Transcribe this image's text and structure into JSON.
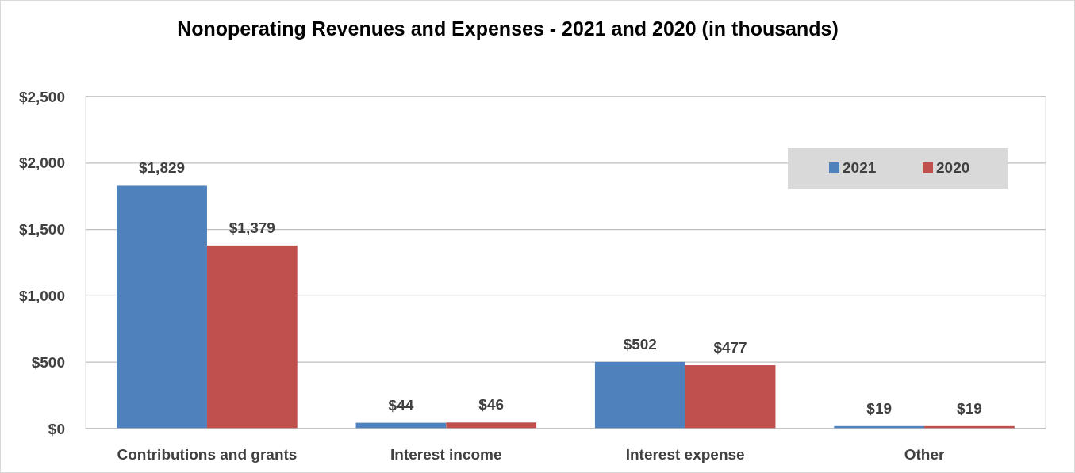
{
  "chart_data": {
    "type": "bar",
    "title": "Nonoperating Revenues and Expenses - 2021 and 2020  (in thousands)",
    "categories": [
      "Contributions and grants",
      "Interest income",
      "Interest expense",
      "Other"
    ],
    "series": [
      {
        "name": "2021",
        "color": "#4f81bd",
        "values": [
          1829,
          44,
          502,
          19
        ],
        "value_labels": [
          "$1,829",
          "$44",
          "$502",
          "$19"
        ]
      },
      {
        "name": "2020",
        "color": "#c0504d",
        "values": [
          1379,
          46,
          477,
          19
        ],
        "value_labels": [
          "$1,379",
          "$46",
          "$477",
          "$19"
        ]
      }
    ],
    "ylim": [
      0,
      2500
    ],
    "yticks": [
      {
        "value": 0,
        "label": "$0"
      },
      {
        "value": 500,
        "label": "$500"
      },
      {
        "value": 1000,
        "label": "$1,000"
      },
      {
        "value": 1500,
        "label": "$1,500"
      },
      {
        "value": 2000,
        "label": "$2,000"
      },
      {
        "value": 2500,
        "label": "$2,500"
      }
    ],
    "grid": "y",
    "legend": "top right"
  }
}
